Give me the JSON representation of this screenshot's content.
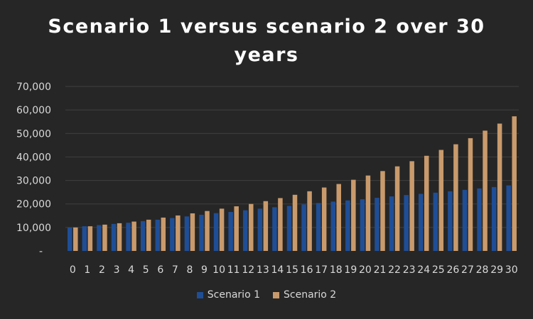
{
  "chart_data": {
    "type": "bar",
    "title": "Scenario 1 versus scenario 2 over 30 years",
    "xlabel": "",
    "ylabel": "",
    "ylim": [
      0,
      70000
    ],
    "yticks": [
      "-",
      "10,000",
      "20,000",
      "30,000",
      "40,000",
      "50,000",
      "60,000",
      "70,000"
    ],
    "grid": true,
    "legend_position": "bottom",
    "categories": [
      "0",
      "1",
      "2",
      "3",
      "4",
      "5",
      "6",
      "7",
      "8",
      "9",
      "10",
      "11",
      "12",
      "13",
      "14",
      "15",
      "16",
      "17",
      "18",
      "19",
      "20",
      "21",
      "22",
      "23",
      "24",
      "25",
      "26",
      "27",
      "28",
      "29",
      "30"
    ],
    "series": [
      {
        "name": "Scenario 1",
        "color": "#1f4e96",
        "values": [
          10000,
          10500,
          11000,
          11500,
          12000,
          12700,
          13300,
          14000,
          14700,
          15400,
          16100,
          16600,
          17300,
          18000,
          18600,
          19200,
          19800,
          20400,
          21000,
          21500,
          22000,
          22600,
          23200,
          23800,
          24300,
          24800,
          25400,
          26000,
          26600,
          27200,
          27900
        ]
      },
      {
        "name": "Scenario 2",
        "color": "#c99a6c",
        "values": [
          10000,
          10500,
          11200,
          11800,
          12500,
          13300,
          14200,
          15100,
          16000,
          17000,
          18000,
          19000,
          20000,
          21200,
          22500,
          23900,
          25400,
          27000,
          28500,
          30300,
          32100,
          34000,
          36000,
          38200,
          40500,
          43000,
          45400,
          48000,
          51200,
          54200,
          57300
        ]
      }
    ]
  }
}
